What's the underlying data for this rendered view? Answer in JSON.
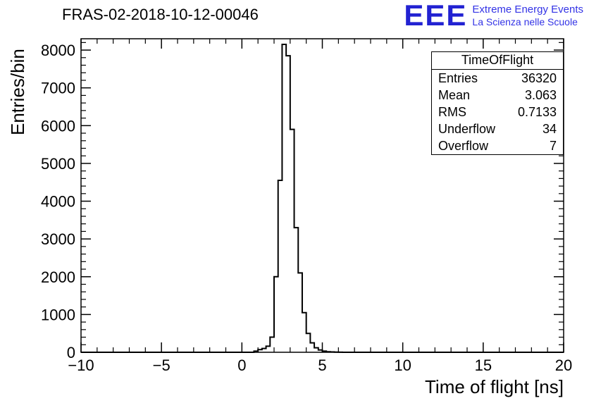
{
  "header": {
    "title": "FRAS-02-2018-10-12-00046"
  },
  "logo": {
    "eee": "EEE",
    "line1": "Extreme Energy Events",
    "line2": "La Scienza nelle Scuole",
    "color": "#2222d2",
    "text_color": "#3333e6"
  },
  "stats": {
    "title": "TimeOfFlight",
    "rows": [
      {
        "label": "Entries",
        "value": "36320"
      },
      {
        "label": "Mean",
        "value": "3.063"
      },
      {
        "label": "RMS",
        "value": "0.7133"
      },
      {
        "label": "Underflow",
        "value": "34"
      },
      {
        "label": "Overflow",
        "value": "7"
      }
    ]
  },
  "chart_data": {
    "type": "histogram-step",
    "title": "FRAS-02-2018-10-12-00046",
    "xlabel": "Time of flight [ns]",
    "ylabel": "Entries/bin",
    "xlim": [
      -10,
      20
    ],
    "ylim": [
      0,
      8300
    ],
    "x_tick_values": [
      -10,
      -5,
      0,
      5,
      10,
      15,
      20
    ],
    "x_tick_labels": [
      "−10",
      "−5",
      "0",
      "5",
      "10",
      "15",
      "20"
    ],
    "x_minor_step": 1,
    "y_tick_values": [
      0,
      1000,
      2000,
      3000,
      4000,
      5000,
      6000,
      7000,
      8000
    ],
    "y_tick_labels": [
      "0",
      "1000",
      "2000",
      "3000",
      "4000",
      "5000",
      "6000",
      "7000",
      "8000"
    ],
    "y_minor_step": 200,
    "bin_start": 0.75,
    "bin_width": 0.25,
    "bin_values": [
      30,
      70,
      100,
      160,
      400,
      2000,
      4550,
      8150,
      7850,
      5900,
      3300,
      2100,
      1050,
      500,
      250,
      120,
      60,
      30,
      15,
      10,
      5,
      3
    ],
    "line_color": "#000000",
    "grid": false,
    "legend_position": "none"
  }
}
